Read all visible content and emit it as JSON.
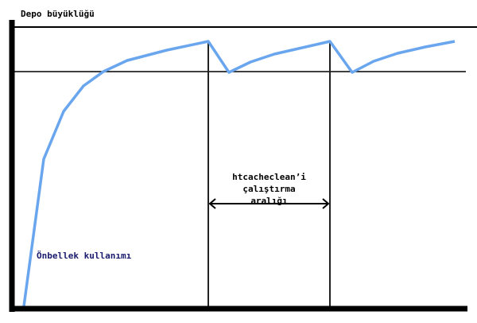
{
  "diagram": {
    "y_axis_label": "Depo büyüklüğü",
    "interval_label": [
      "htcacheclean’i",
      "çalıştırma",
      "aralığı"
    ],
    "curve_label": "Önbellek kullanımı",
    "colors": {
      "curve": "#6aa6ee",
      "lines": "#000000",
      "curve_label": "#1a1a6e"
    }
  }
}
